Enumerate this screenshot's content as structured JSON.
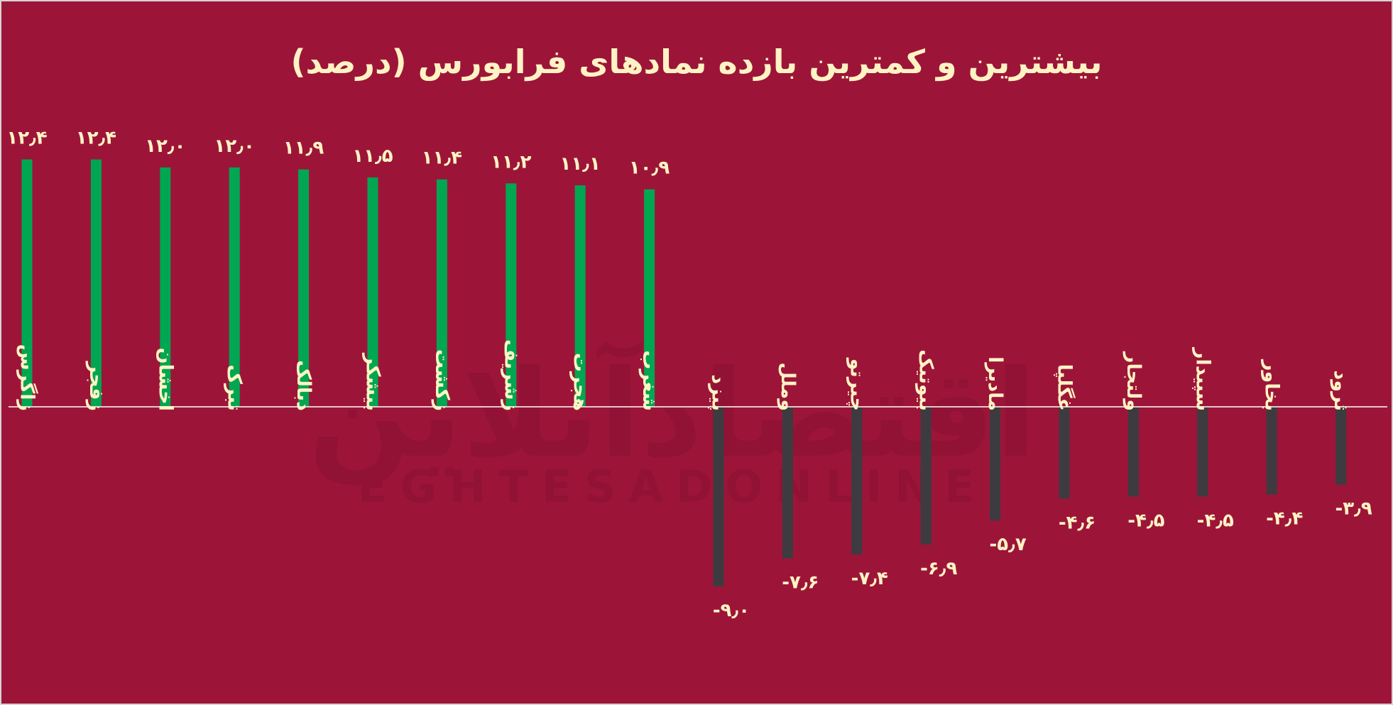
{
  "chart_data": {
    "type": "bar",
    "title": "بیشترین و کمترین بازده نمادهای فرابورس (درصد)",
    "categories": [
      "زاگرس",
      "زفجر",
      "اخشان",
      "تبرک",
      "دبالک",
      "بیشکر",
      "زکشت",
      "زشریف",
      "هجرت",
      "شغرب",
      "پیزد",
      "وملل",
      "چیرتو",
      "بیوتیک",
      "مادیرا",
      "غگلپا",
      "ولتجار",
      "سپیدار",
      "بخاور",
      "ثرود"
    ],
    "values": [
      12.4,
      12.4,
      12.0,
      12.0,
      11.9,
      11.5,
      11.4,
      11.2,
      11.1,
      10.9,
      -9.0,
      -7.6,
      -7.4,
      -6.9,
      -5.7,
      -4.6,
      -4.5,
      -4.5,
      -4.4,
      -3.9
    ],
    "value_labels": [
      "۱۲٫۴",
      "۱۲٫۴",
      "۱۲٫۰",
      "۱۲٫۰",
      "۱۱٫۹",
      "۱۱٫۵",
      "۱۱٫۴",
      "۱۱٫۲",
      "۱۱٫۱",
      "۱۰٫۹",
      "-۹٫۰",
      "-۷٫۶",
      "-۷٫۴",
      "-۶٫۹",
      "-۵٫۷",
      "-۴٫۶",
      "-۴٫۵",
      "-۴٫۵",
      "-۴٫۴",
      "-۳٫۹"
    ],
    "xlabel": "",
    "ylabel": "",
    "ylim": [
      -10,
      15
    ],
    "grid": false,
    "legend": "none",
    "colors": {
      "positive": "#00a651",
      "negative": "#3d3b40",
      "background": "#9c1539",
      "text": "#fff3c4",
      "axis": "#ffffff"
    }
  },
  "watermark": {
    "text": "اقتصادآنلاین",
    "latin": "EGHTESADONLINE"
  }
}
